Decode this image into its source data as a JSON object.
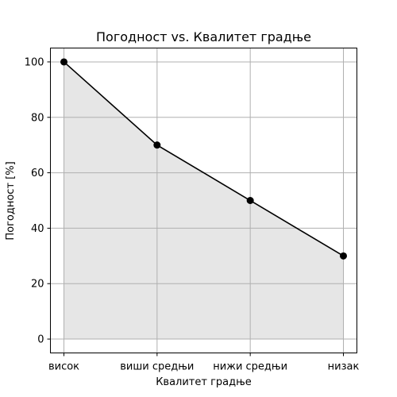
{
  "chart_data": {
    "type": "area",
    "title": "Погодност vs. Квалитет градње",
    "xlabel": "Квалитет градње",
    "ylabel": "Погодност [%]",
    "categories": [
      "висок",
      "виши средњи",
      "нижи средњи",
      "низак"
    ],
    "series": [
      {
        "values": [
          100,
          70,
          50,
          30
        ]
      }
    ],
    "ylim": [
      -5,
      105
    ],
    "yticks": [
      0,
      20,
      40,
      60,
      80,
      100
    ],
    "grid": true,
    "colors": {
      "line": "#000000",
      "marker": "#000000",
      "fill": "#e6e6e6",
      "grid": "#b0b0b0"
    }
  }
}
